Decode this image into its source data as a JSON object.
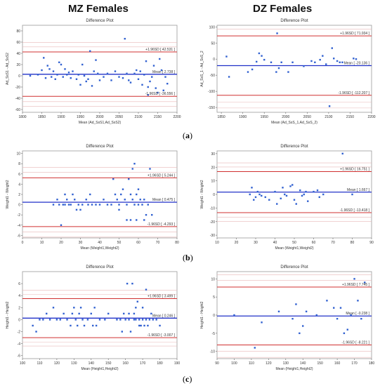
{
  "headings": {
    "left": "MZ Females",
    "right": "DZ Females"
  },
  "panel_labels": [
    "a",
    "b",
    "c"
  ],
  "colors": {
    "mean_line": "#2030c8",
    "sd_line": "#d03030",
    "grid_line": "#e8b8b8",
    "points": "#3060d0",
    "frame": "#999999"
  },
  "chart_data": [
    {
      "type": "scatter",
      "title": "Difference Plot",
      "xlabel": "Mean (Ad_SsS1,Ad_SsS2)",
      "ylabel": "Ad_SsS1 - Ad_SsS2",
      "xlim": [
        1800,
        2200
      ],
      "ylim": [
        -65,
        90
      ],
      "xticks": [
        1800,
        1850,
        1900,
        1950,
        2000,
        2050,
        2100,
        2150,
        2200
      ],
      "yticks": [
        -60,
        -40,
        -20,
        0,
        20,
        40,
        60,
        80
      ],
      "mean": 2.738,
      "upper": 42.531,
      "lower": -36.556,
      "labels": {
        "upper": "+1.96SD [ 42.531 ]",
        "mean": "Mean [ 2.738 ]",
        "lower": "-1.96SD [ -36.556 ]"
      },
      "points": [
        [
          1820,
          0
        ],
        [
          1840,
          2
        ],
        [
          1850,
          10
        ],
        [
          1855,
          32
        ],
        [
          1860,
          -4
        ],
        [
          1865,
          18
        ],
        [
          1870,
          12
        ],
        [
          1875,
          -2
        ],
        [
          1880,
          8
        ],
        [
          1885,
          -6
        ],
        [
          1890,
          2
        ],
        [
          1895,
          24
        ],
        [
          1900,
          20
        ],
        [
          1905,
          -2
        ],
        [
          1910,
          12
        ],
        [
          1915,
          2
        ],
        [
          1920,
          6
        ],
        [
          1925,
          -4
        ],
        [
          1930,
          8
        ],
        [
          1940,
          -6
        ],
        [
          1945,
          2
        ],
        [
          1950,
          -16
        ],
        [
          1955,
          20
        ],
        [
          1960,
          0
        ],
        [
          1965,
          -10
        ],
        [
          1970,
          -6
        ],
        [
          1975,
          44
        ],
        [
          1980,
          -18
        ],
        [
          1985,
          8
        ],
        [
          1990,
          28
        ],
        [
          1995,
          4
        ],
        [
          2000,
          -8
        ],
        [
          2010,
          -2
        ],
        [
          2020,
          4
        ],
        [
          2030,
          -8
        ],
        [
          2040,
          8
        ],
        [
          2050,
          -2
        ],
        [
          2060,
          -4
        ],
        [
          2065,
          66
        ],
        [
          2070,
          4
        ],
        [
          2075,
          -8
        ],
        [
          2080,
          -12
        ],
        [
          2090,
          4
        ],
        [
          2095,
          10
        ],
        [
          2100,
          -6
        ],
        [
          2105,
          8
        ],
        [
          2110,
          -16
        ],
        [
          2115,
          2
        ],
        [
          2120,
          26
        ],
        [
          2125,
          -20
        ],
        [
          2130,
          -10
        ],
        [
          2135,
          -2
        ],
        [
          2140,
          18
        ],
        [
          2145,
          -22
        ],
        [
          2150,
          -30
        ],
        [
          2155,
          30
        ],
        [
          2160,
          10
        ],
        [
          2165,
          -26
        ],
        [
          2170,
          -2
        ],
        [
          2175,
          -14
        ],
        [
          2125,
          -34
        ]
      ]
    },
    {
      "type": "scatter",
      "title": "Difference Plot",
      "xlabel": "Mean (Ad_SsS_1,Ad_SsS_2)",
      "ylabel": "Ad_SsS_1 - Ad_SsS_2",
      "xlim": [
        1840,
        2200
      ],
      "ylim": [
        -165,
        105
      ],
      "xticks": [
        1850,
        1900,
        1950,
        2000,
        2050,
        2100,
        2150,
        2200
      ],
      "yticks": [
        -150,
        -100,
        -50,
        0,
        50,
        100
      ],
      "mean": -20.136,
      "upper": 71.934,
      "lower": -112.207,
      "labels": {
        "upper": "+1.96SD [ 71.934 ]",
        "mean": "Mean [ -20.136 ]",
        "lower": "-1.96SD [ -112.207 ]"
      },
      "points": [
        [
          1862,
          8
        ],
        [
          1868,
          -55
        ],
        [
          1912,
          -40
        ],
        [
          1922,
          -32
        ],
        [
          1932,
          -8
        ],
        [
          1938,
          18
        ],
        [
          1944,
          10
        ],
        [
          1950,
          -2
        ],
        [
          1966,
          -10
        ],
        [
          1978,
          -40
        ],
        [
          1984,
          -28
        ],
        [
          1990,
          -10
        ],
        [
          1980,
          80
        ],
        [
          2006,
          -40
        ],
        [
          2016,
          -10
        ],
        [
          2042,
          -22
        ],
        [
          2060,
          -6
        ],
        [
          2068,
          -10
        ],
        [
          2080,
          -2
        ],
        [
          2086,
          10
        ],
        [
          2094,
          -16
        ],
        [
          2102,
          -146
        ],
        [
          2108,
          34
        ],
        [
          2112,
          2
        ],
        [
          2120,
          -6
        ],
        [
          2126,
          -10
        ],
        [
          2132,
          -10
        ],
        [
          2158,
          2
        ],
        [
          2164,
          0
        ]
      ]
    },
    {
      "type": "scatter",
      "title": "Difference Plot",
      "xlabel": "Mean (Weight1,Weight2)",
      "ylabel": "Weight1 - Weight2",
      "xlim": [
        0,
        80
      ],
      "ylim": [
        -6.5,
        10.5
      ],
      "xticks": [
        0,
        10,
        20,
        30,
        40,
        50,
        60,
        70,
        80
      ],
      "yticks": [
        -6,
        -4,
        -2,
        0,
        2,
        4,
        6,
        8,
        10
      ],
      "mean": 0.475,
      "upper": 5.244,
      "lower": -4.293,
      "labels": {
        "upper": "+1.96SD [ 5.244 ]",
        "mean": "Mean [ 0.475 ]",
        "lower": "-1.96SD [ -4.293 ]"
      },
      "points": [
        [
          16,
          0
        ],
        [
          18,
          1
        ],
        [
          19,
          0
        ],
        [
          20,
          -4
        ],
        [
          21,
          0
        ],
        [
          22,
          2
        ],
        [
          22,
          0
        ],
        [
          23,
          1
        ],
        [
          24,
          0
        ],
        [
          25,
          0
        ],
        [
          26,
          2
        ],
        [
          27,
          1
        ],
        [
          28,
          -1
        ],
        [
          29,
          0
        ],
        [
          30,
          -1
        ],
        [
          31,
          0
        ],
        [
          33,
          1
        ],
        [
          34,
          0
        ],
        [
          35,
          2
        ],
        [
          36,
          0
        ],
        [
          38,
          0
        ],
        [
          40,
          0
        ],
        [
          42,
          1
        ],
        [
          44,
          0
        ],
        [
          46,
          0
        ],
        [
          47,
          5
        ],
        [
          48,
          2
        ],
        [
          49,
          1
        ],
        [
          50,
          0
        ],
        [
          50,
          -1
        ],
        [
          51,
          2
        ],
        [
          52,
          3
        ],
        [
          53,
          1
        ],
        [
          54,
          0
        ],
        [
          54,
          -3
        ],
        [
          55,
          5
        ],
        [
          56,
          2
        ],
        [
          56,
          -3
        ],
        [
          57,
          7
        ],
        [
          57,
          1
        ],
        [
          58,
          8
        ],
        [
          58,
          0
        ],
        [
          59,
          2
        ],
        [
          59,
          -3
        ],
        [
          60,
          3
        ],
        [
          60,
          0
        ],
        [
          61,
          1
        ],
        [
          62,
          0
        ],
        [
          63,
          -3
        ],
        [
          63,
          1
        ],
        [
          64,
          -2
        ],
        [
          65,
          0
        ],
        [
          66,
          7
        ],
        [
          67,
          -2
        ]
      ]
    },
    {
      "type": "scatter",
      "title": "Difference Plot",
      "xlabel": "Mean (Weight1,Weight2)",
      "ylabel": "Weight1 - Weight2",
      "xlim": [
        10,
        90
      ],
      "ylim": [
        -32,
        32
      ],
      "xticks": [
        10,
        20,
        30,
        40,
        50,
        60,
        70,
        80,
        90
      ],
      "yticks": [
        -30,
        -20,
        -10,
        0,
        10,
        20,
        30
      ],
      "mean": 1.667,
      "upper": 16.751,
      "lower": -13.418,
      "labels": {
        "upper": "+1.96SD [ 16.751 ]",
        "mean": "Mean [ 1.667 ]",
        "lower": "-1.96SD [ -13.418 ]"
      },
      "points": [
        [
          27,
          0
        ],
        [
          28,
          5
        ],
        [
          29,
          -4
        ],
        [
          30,
          -2
        ],
        [
          31,
          2
        ],
        [
          32,
          0
        ],
        [
          33,
          -1
        ],
        [
          35,
          -2
        ],
        [
          37,
          -4
        ],
        [
          40,
          2
        ],
        [
          41,
          -7
        ],
        [
          43,
          -3
        ],
        [
          44,
          5
        ],
        [
          45,
          0
        ],
        [
          46,
          -1
        ],
        [
          48,
          6
        ],
        [
          49,
          7
        ],
        [
          50,
          -4
        ],
        [
          51,
          -7
        ],
        [
          53,
          3
        ],
        [
          54,
          -1
        ],
        [
          55,
          0
        ],
        [
          56,
          2
        ],
        [
          57,
          -5
        ],
        [
          60,
          2
        ],
        [
          62,
          3
        ],
        [
          63,
          -2
        ],
        [
          65,
          0
        ],
        [
          75,
          30
        ],
        [
          80,
          0
        ]
      ]
    },
    {
      "type": "scatter",
      "title": "Difference Plot",
      "xlabel": "Mean (Height1,Height2)",
      "ylabel": "Height1 - Height2",
      "xlim": [
        100,
        190
      ],
      "ylim": [
        -6.5,
        8
      ],
      "xticks": [
        100,
        110,
        120,
        130,
        140,
        150,
        160,
        170,
        180,
        190
      ],
      "yticks": [
        -6,
        -4,
        -2,
        0,
        2,
        4,
        6
      ],
      "mean": 0.246,
      "upper": 3.499,
      "lower": -3.007,
      "labels": {
        "upper": "+1.96SD [ 3.499 ]",
        "mean": "Mean [ 0.246 ]",
        "lower": "-1.96SD [ -3.007 ]"
      },
      "points": [
        [
          106,
          -1
        ],
        [
          108,
          -2
        ],
        [
          110,
          0
        ],
        [
          112,
          0
        ],
        [
          114,
          1
        ],
        [
          116,
          0
        ],
        [
          118,
          2
        ],
        [
          120,
          0
        ],
        [
          122,
          0
        ],
        [
          124,
          1
        ],
        [
          126,
          0
        ],
        [
          128,
          -1
        ],
        [
          129,
          1
        ],
        [
          130,
          2
        ],
        [
          131,
          0
        ],
        [
          132,
          -1
        ],
        [
          133,
          1
        ],
        [
          134,
          2
        ],
        [
          135,
          0
        ],
        [
          136,
          -1
        ],
        [
          138,
          0
        ],
        [
          140,
          1
        ],
        [
          141,
          -1
        ],
        [
          142,
          2
        ],
        [
          143,
          -1
        ],
        [
          145,
          0
        ],
        [
          148,
          0
        ],
        [
          150,
          1
        ],
        [
          155,
          0
        ],
        [
          157,
          0
        ],
        [
          158,
          -2
        ],
        [
          159,
          1
        ],
        [
          160,
          0
        ],
        [
          161,
          6
        ],
        [
          162,
          1
        ],
        [
          162,
          0
        ],
        [
          163,
          -2
        ],
        [
          164,
          6
        ],
        [
          165,
          1
        ],
        [
          165,
          0
        ],
        [
          166,
          2
        ],
        [
          166,
          0
        ],
        [
          167,
          3
        ],
        [
          168,
          0
        ],
        [
          168,
          -1
        ],
        [
          169,
          -1
        ],
        [
          170,
          2
        ],
        [
          170,
          0
        ],
        [
          171,
          -1
        ],
        [
          172,
          5
        ],
        [
          172,
          0
        ],
        [
          173,
          -1
        ],
        [
          174,
          0
        ],
        [
          175,
          1
        ],
        [
          176,
          0
        ],
        [
          178,
          0
        ],
        [
          180,
          -1
        ]
      ]
    },
    {
      "type": "scatter",
      "title": "Difference Plot",
      "xlabel": "Mean (Height1,Height2)",
      "ylabel": "Height1 - Height2",
      "xlim": [
        90,
        180
      ],
      "ylim": [
        -12,
        12
      ],
      "xticks": [
        90,
        100,
        110,
        120,
        130,
        140,
        150,
        160,
        170,
        180
      ],
      "yticks": [
        -10,
        -5,
        0,
        5,
        10
      ],
      "mean": -0.238,
      "upper": 7.745,
      "lower": -8.221,
      "labels": {
        "upper": "+1.96SD [ 7.745 ]",
        "mean": "Mean [ -0.238 ]",
        "lower": "-1.96SD [ -8.221 ]"
      },
      "points": [
        [
          100,
          0
        ],
        [
          112,
          -9
        ],
        [
          116,
          -2
        ],
        [
          126,
          1
        ],
        [
          134,
          -1
        ],
        [
          136,
          3
        ],
        [
          138,
          -5
        ],
        [
          140,
          -3
        ],
        [
          142,
          1
        ],
        [
          148,
          0
        ],
        [
          154,
          4
        ],
        [
          158,
          2
        ],
        [
          160,
          -1
        ],
        [
          162,
          2
        ],
        [
          164,
          -5
        ],
        [
          166,
          -4
        ],
        [
          168,
          0
        ],
        [
          170,
          10
        ],
        [
          172,
          4
        ],
        [
          174,
          -1
        ],
        [
          176,
          9
        ]
      ]
    }
  ]
}
